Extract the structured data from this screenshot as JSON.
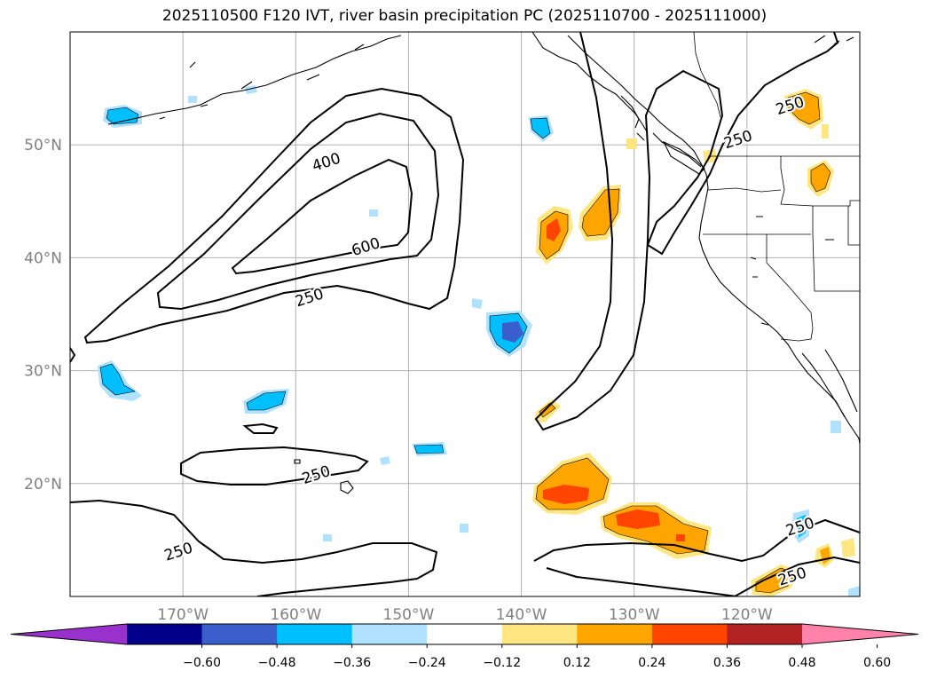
{
  "title": "2025110500 F120 IVT, river basin precipitation PC (2025110700 - 2025111000)",
  "map": {
    "lon_range": [
      -180,
      -110
    ],
    "lat_range": [
      10,
      60
    ],
    "lon_ticks": [
      -170,
      -160,
      -150,
      -140,
      -130,
      -120
    ],
    "lat_ticks": [
      20,
      30,
      40,
      50
    ],
    "lon_tick_labels": [
      "170°W",
      "160°W",
      "150°W",
      "140°W",
      "130°W",
      "120°W"
    ],
    "lat_tick_labels": [
      "20°N",
      "30°N",
      "40°N",
      "50°N"
    ],
    "grid": true,
    "tick_label_color": "#808080"
  },
  "contours": {
    "levels": [
      250,
      400,
      600
    ],
    "labels": [
      {
        "text": "400",
        "lon": -157.3,
        "lat": 48.5
      },
      {
        "text": "600",
        "lon": -153.8,
        "lat": 41.0
      },
      {
        "text": "250",
        "lon": -158.8,
        "lat": 36.5
      },
      {
        "text": "250",
        "lon": -158.2,
        "lat": 20.8
      },
      {
        "text": "250",
        "lon": -170.4,
        "lat": 14.0
      },
      {
        "text": "250",
        "lon": -116.2,
        "lat": 53.5
      },
      {
        "text": "250",
        "lon": -115.3,
        "lat": 16.2
      },
      {
        "text": "250",
        "lon": -116.0,
        "lat": 11.8
      },
      {
        "text": "250",
        "lon": -120.8,
        "lat": 50.5
      }
    ]
  },
  "colorbar": {
    "tick_labels": [
      "−0.60",
      "−0.48",
      "−0.36",
      "−0.24",
      "−0.12",
      "0.12",
      "0.24",
      "0.36",
      "0.48",
      "0.60"
    ],
    "colors": [
      "#9932cc",
      "#00008b",
      "#3a5fcd",
      "#00bfff",
      "#b0e2ff",
      "#ffffff",
      "#ffe680",
      "#ffa500",
      "#ff4500",
      "#b22222",
      "#ff82ab"
    ],
    "extend": "both"
  }
}
